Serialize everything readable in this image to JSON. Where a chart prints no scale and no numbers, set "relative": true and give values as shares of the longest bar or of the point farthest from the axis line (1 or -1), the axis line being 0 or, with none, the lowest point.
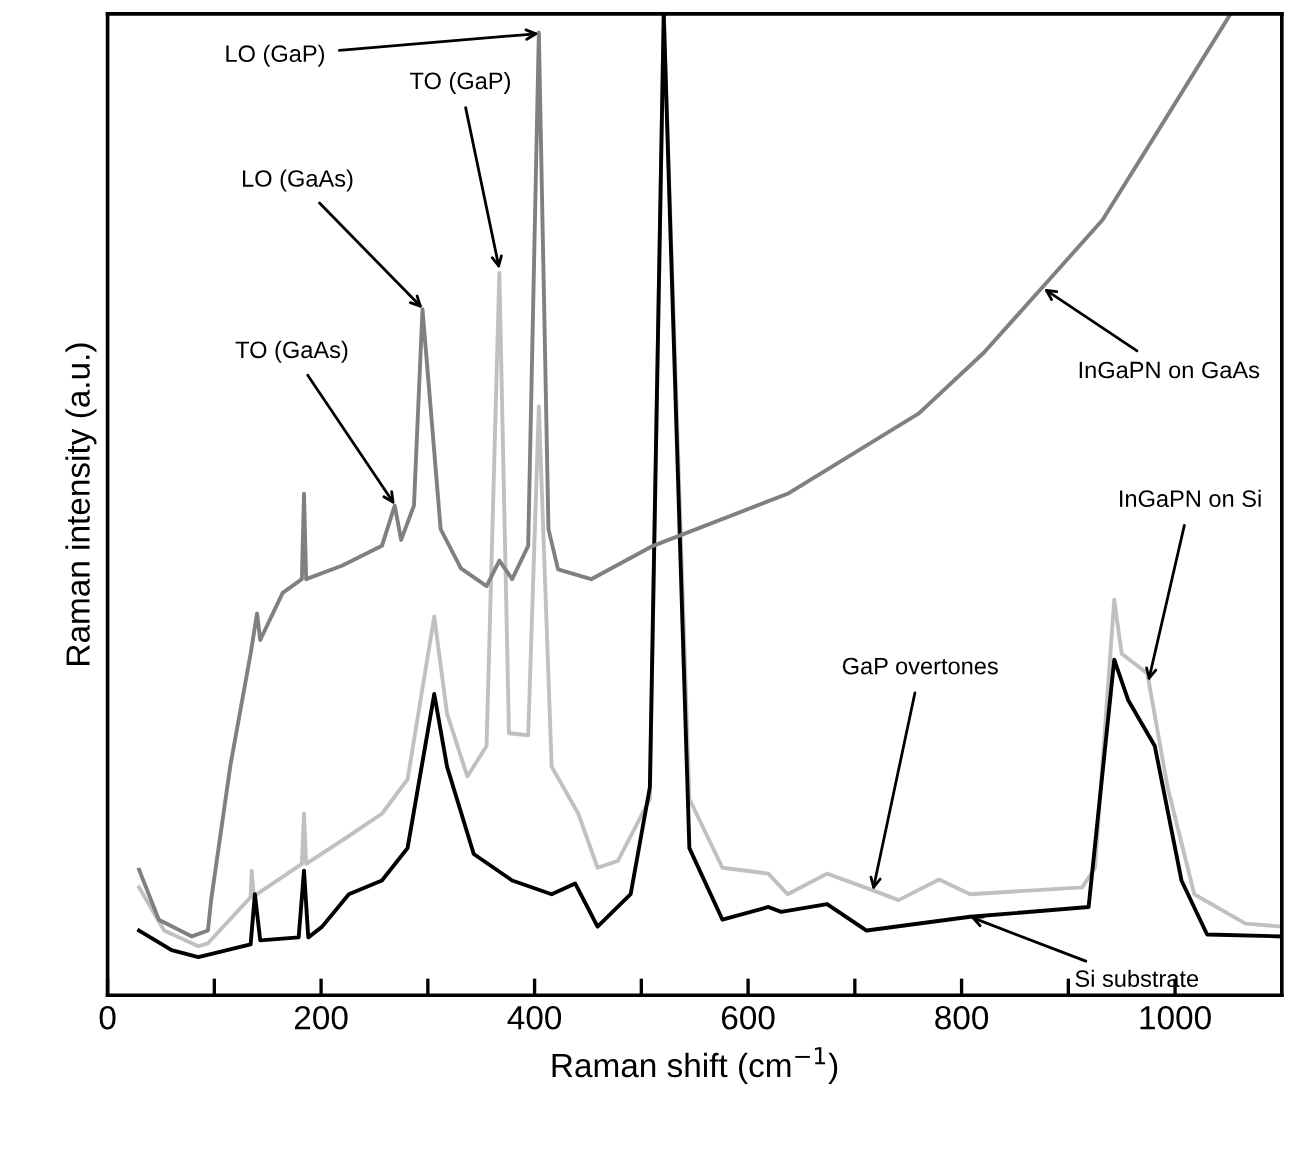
{
  "chart_data": {
    "type": "line",
    "relative": true,
    "xlabel": "Raman shift (cm$^{−1}$)",
    "ylabel": "Raman intensity (a.u.)",
    "xlim": [
      0,
      1100
    ],
    "xticks": [
      0,
      {
        "value": 100,
        "label": null
      },
      200,
      {
        "value": 300,
        "label": null
      },
      400,
      {
        "value": 500,
        "label": null
      },
      600,
      {
        "value": 700,
        "label": null
      },
      800,
      {
        "value": 900,
        "label": null
      },
      1000
    ],
    "grid": false,
    "legend": false,
    "marker": "none",
    "line_style": "solid",
    "tick_labels": "x",
    "series": [
      {
        "color": "#c0c0c0",
        "x": [
          29.5,
          53,
          85,
          94,
          134,
          135,
          137,
          140,
          182,
          184,
          186,
          220,
          257,
          281,
          306,
          318,
          337,
          355,
          367,
          376,
          394,
          404,
          416,
          441,
          459,
          478,
          508,
          521,
          545,
          576,
          619,
          637,
          674,
          717,
          741,
          779,
          808,
          913,
          925,
          943,
          950,
          974,
          993,
          1018,
          1066,
          1100
        ],
        "values": [
          0.11,
          0.066,
          0.05,
          0.053,
          0.1,
          0.127,
          0.1,
          0.103,
          0.134,
          0.185,
          0.134,
          0.158,
          0.185,
          0.22,
          0.386,
          0.287,
          0.223,
          0.254,
          0.736,
          0.267,
          0.265,
          0.6,
          0.233,
          0.185,
          0.13,
          0.137,
          0.2,
          1.0,
          0.2,
          0.13,
          0.124,
          0.103,
          0.124,
          0.107,
          0.097,
          0.118,
          0.103,
          0.11,
          0.13,
          0.403,
          0.348,
          0.328,
          0.212,
          0.103,
          0.073,
          0.07
        ]
      },
      {
        "color": "#000000",
        "x": [
          29.5,
          60,
          85,
          134,
          138,
          143,
          179,
          184,
          188,
          201,
          226,
          257,
          281,
          306,
          318,
          343,
          379,
          416,
          438,
          459,
          490,
          508,
          521,
          545,
          576,
          619,
          631,
          674,
          711,
          808,
          919,
          943,
          956,
          981,
          1006,
          1030,
          1100
        ],
        "values": [
          0.066,
          0.046,
          0.039,
          0.052,
          0.103,
          0.056,
          0.059,
          0.127,
          0.059,
          0.07,
          0.103,
          0.117,
          0.15,
          0.307,
          0.233,
          0.144,
          0.117,
          0.103,
          0.114,
          0.07,
          0.103,
          0.212,
          1.0,
          0.15,
          0.077,
          0.09,
          0.085,
          0.093,
          0.066,
          0.08,
          0.09,
          0.342,
          0.301,
          0.254,
          0.117,
          0.062,
          0.06
        ]
      },
      {
        "color": "#808080",
        "x": [
          29.5,
          48,
          79,
          94,
          97,
          115,
          134,
          140,
          143,
          164,
          182,
          184,
          186,
          220,
          257,
          269,
          275,
          287,
          295,
          302,
          312,
          331,
          355,
          367,
          379,
          394,
          404,
          413,
          422,
          453,
          511,
          637,
          760,
          821,
          877,
          932,
          975,
          1052
        ],
        "values": [
          0.128,
          0.077,
          0.06,
          0.066,
          0.097,
          0.234,
          0.348,
          0.389,
          0.362,
          0.41,
          0.424,
          0.511,
          0.424,
          0.438,
          0.458,
          0.499,
          0.464,
          0.499,
          0.699,
          0.607,
          0.475,
          0.435,
          0.417,
          0.443,
          0.424,
          0.458,
          0.981,
          0.475,
          0.434,
          0.424,
          0.458,
          0.511,
          0.593,
          0.655,
          0.723,
          0.79,
          0.865,
          1.0
        ]
      }
    ],
    "annotations": [
      {
        "text": "LO (GaP)",
        "x": 404,
        "y": 0.98
      },
      {
        "text": "TO (GaP)",
        "x": 367,
        "y": 0.74
      },
      {
        "text": "LO (GaAs)",
        "x": 295,
        "y": 0.7
      },
      {
        "text": "TO (GaAs)",
        "x": 269,
        "y": 0.5
      },
      {
        "text": "InGaPN on GaAs",
        "x": 877,
        "y": 0.72
      },
      {
        "text": "InGaPN on Si",
        "x": 975,
        "y": 0.32
      },
      {
        "text": "GaP overtones",
        "x": 717,
        "y": 0.107
      },
      {
        "text": "Si substrate",
        "x": 808,
        "y": 0.08
      }
    ]
  }
}
